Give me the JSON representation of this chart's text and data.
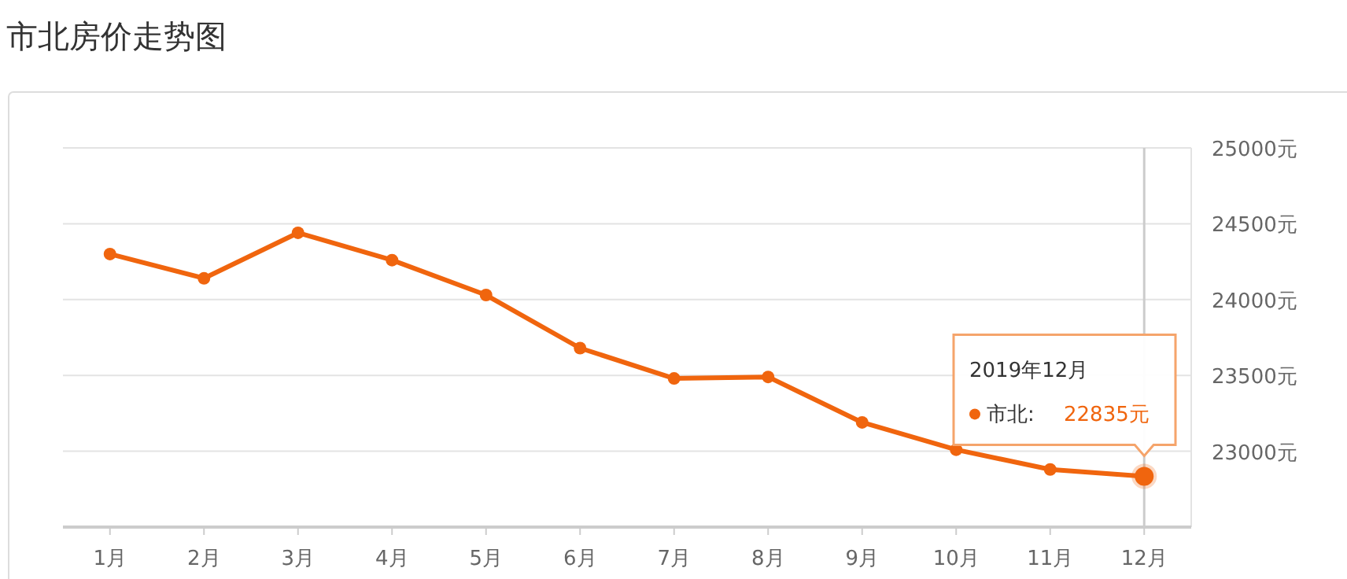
{
  "chart_data": {
    "type": "line",
    "title": "市北房价走势图",
    "categories": [
      "1月",
      "2月",
      "3月",
      "4月",
      "5月",
      "6月",
      "7月",
      "8月",
      "9月",
      "10月",
      "11月",
      "12月"
    ],
    "series": [
      {
        "name": "市北:",
        "color": "#f0650e",
        "values": [
          24300,
          24140,
          24440,
          24260,
          24030,
          23680,
          23480,
          23490,
          23190,
          23010,
          22880,
          22835
        ],
        "value_labels": [
          null,
          null,
          null,
          null,
          null,
          null,
          null,
          null,
          null,
          null,
          null,
          "22835元"
        ]
      }
    ],
    "ylim": [
      22500,
      25000
    ],
    "yticks": [
      {
        "value": 23000,
        "label": "23000元"
      },
      {
        "value": 23500,
        "label": "23500元"
      },
      {
        "value": 24000,
        "label": "24000元"
      },
      {
        "value": 24500,
        "label": "24500元"
      },
      {
        "value": 25000,
        "label": "25000元"
      }
    ],
    "ref_lines": [
      {
        "axis": "x",
        "value": "12月",
        "color": "#cccccc"
      }
    ],
    "annotations": [
      "2019年12月"
    ],
    "grid": "y",
    "legend": "right",
    "marker": "circle",
    "line_style": "solid"
  }
}
